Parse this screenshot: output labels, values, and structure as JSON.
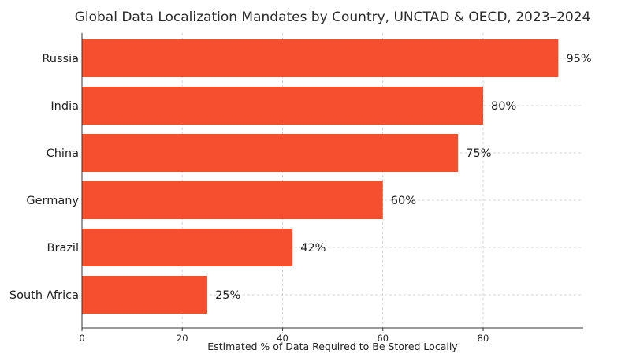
{
  "chart_data": {
    "type": "bar",
    "orientation": "horizontal",
    "title": "Global Data Localization Mandates by Country, UNCTAD & OECD, 2023–2024",
    "xlabel": "Estimated % of Data Required to Be Stored Locally",
    "ylabel": "",
    "categories": [
      "Russia",
      "India",
      "China",
      "Germany",
      "Brazil",
      "South Africa"
    ],
    "values": [
      95,
      80,
      75,
      60,
      42,
      25
    ],
    "value_labels": [
      "95%",
      "80%",
      "75%",
      "60%",
      "42%",
      "25%"
    ],
    "xlim": [
      0,
      100
    ],
    "xticks": [
      0,
      20,
      40,
      60,
      80
    ],
    "xtick_labels": [
      "0",
      "20",
      "40",
      "60",
      "80"
    ],
    "grid": true,
    "bar_color": "#f44f2e"
  }
}
